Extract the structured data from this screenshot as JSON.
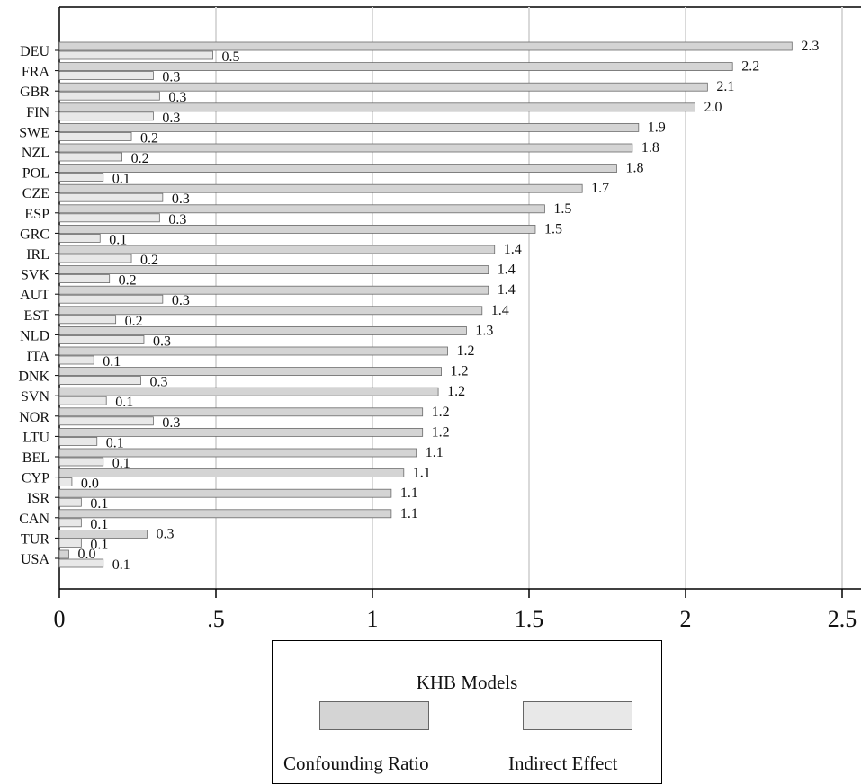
{
  "chart_data": {
    "type": "bar",
    "orientation": "horizontal",
    "categories": [
      "DEU",
      "FRA",
      "GBR",
      "FIN",
      "SWE",
      "NZL",
      "POL",
      "CZE",
      "ESP",
      "GRC",
      "IRL",
      "SVK",
      "AUT",
      "EST",
      "NLD",
      "ITA",
      "DNK",
      "SVN",
      "NOR",
      "LTU",
      "BEL",
      "CYP",
      "ISR",
      "CAN",
      "TUR",
      "USA"
    ],
    "series": [
      {
        "name": "Confounding Ratio",
        "color": "#d4d4d4",
        "values": [
          2.34,
          2.15,
          2.07,
          2.03,
          1.85,
          1.83,
          1.78,
          1.67,
          1.55,
          1.52,
          1.39,
          1.37,
          1.37,
          1.35,
          1.3,
          1.24,
          1.22,
          1.21,
          1.16,
          1.16,
          1.14,
          1.1,
          1.06,
          1.06,
          0.28,
          0.03
        ],
        "labels": [
          "2.3",
          "2.2",
          "2.1",
          "2.0",
          "1.9",
          "1.8",
          "1.8",
          "1.7",
          "1.5",
          "1.5",
          "1.4",
          "1.4",
          "1.4",
          "1.4",
          "1.3",
          "1.2",
          "1.2",
          "1.2",
          "1.2",
          "1.2",
          "1.1",
          "1.1",
          "1.1",
          "1.1",
          "0.3",
          "0.0"
        ]
      },
      {
        "name": "Indirect Effect",
        "color": "#e8e8e8",
        "values": [
          0.49,
          0.3,
          0.32,
          0.3,
          0.23,
          0.2,
          0.14,
          0.33,
          0.32,
          0.13,
          0.23,
          0.16,
          0.33,
          0.18,
          0.27,
          0.11,
          0.26,
          0.15,
          0.3,
          0.12,
          0.14,
          0.04,
          0.07,
          0.07,
          0.07,
          0.14
        ],
        "labels": [
          "0.5",
          "0.3",
          "0.3",
          "0.3",
          "0.2",
          "0.2",
          "0.1",
          "0.3",
          "0.3",
          "0.1",
          "0.2",
          "0.2",
          "0.3",
          "0.2",
          "0.3",
          "0.1",
          "0.3",
          "0.1",
          "0.3",
          "0.1",
          "0.1",
          "0.0",
          "0.1",
          "0.1",
          "0.1",
          "0.1"
        ]
      }
    ],
    "xlim": [
      0,
      2.5
    ],
    "xticks": [
      0,
      0.5,
      1,
      1.5,
      2,
      2.5
    ],
    "xtick_labels": [
      "0",
      ".5",
      "1",
      "1.5",
      "2",
      "2.5"
    ],
    "grid": "vertical",
    "legend": {
      "title": "KHB Models",
      "position": "bottom-center"
    }
  }
}
